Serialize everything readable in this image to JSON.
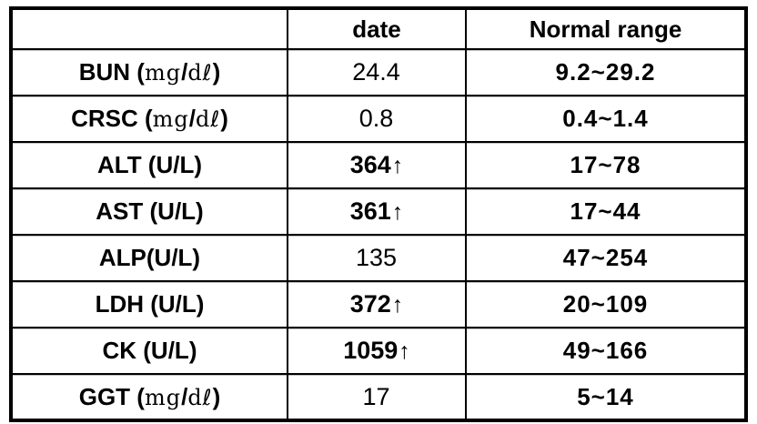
{
  "colors": {
    "border": "#000000",
    "text": "#000000",
    "background": "#ffffff"
  },
  "table": {
    "columns": [
      {
        "label": ""
      },
      {
        "label": "date"
      },
      {
        "label": "Normal range"
      }
    ],
    "rows": [
      {
        "test": {
          "open": "BUN (",
          "unit_a": "mg",
          "sep": "/",
          "unit_b": "dℓ",
          "close": ")"
        },
        "value": "24.4",
        "value_bold": false,
        "arrow": "",
        "range": "9.2~29.2"
      },
      {
        "test": {
          "open": "CRSC (",
          "unit_a": "mg",
          "sep": "/",
          "unit_b": "dℓ",
          "close": ")"
        },
        "value": "0.8",
        "value_bold": false,
        "arrow": "",
        "range": "0.4~1.4"
      },
      {
        "test": {
          "open": "ALT (U/L)",
          "unit_a": "",
          "sep": "",
          "unit_b": "",
          "close": ""
        },
        "value": "364",
        "value_bold": true,
        "arrow": "↑",
        "range": "17~78"
      },
      {
        "test": {
          "open": "AST (U/L)",
          "unit_a": "",
          "sep": "",
          "unit_b": "",
          "close": ""
        },
        "value": "361",
        "value_bold": true,
        "arrow": "↑",
        "range": "17~44"
      },
      {
        "test": {
          "open": "ALP(U/L)",
          "unit_a": "",
          "sep": "",
          "unit_b": "",
          "close": ""
        },
        "value": "135",
        "value_bold": false,
        "arrow": "",
        "range": "47~254"
      },
      {
        "test": {
          "open": "LDH (U/L)",
          "unit_a": "",
          "sep": "",
          "unit_b": "",
          "close": ""
        },
        "value": "372",
        "value_bold": true,
        "arrow": "↑",
        "range": "20~109"
      },
      {
        "test": {
          "open": "CK (U/L)",
          "unit_a": "",
          "sep": "",
          "unit_b": "",
          "close": ""
        },
        "value": "1059",
        "value_bold": true,
        "arrow": "↑",
        "range": "49~166"
      },
      {
        "test": {
          "open": "GGT (",
          "unit_a": "mg",
          "sep": "/",
          "unit_b": "dℓ",
          "close": ")"
        },
        "value": "17",
        "value_bold": false,
        "arrow": "",
        "range": "5~14"
      }
    ]
  }
}
